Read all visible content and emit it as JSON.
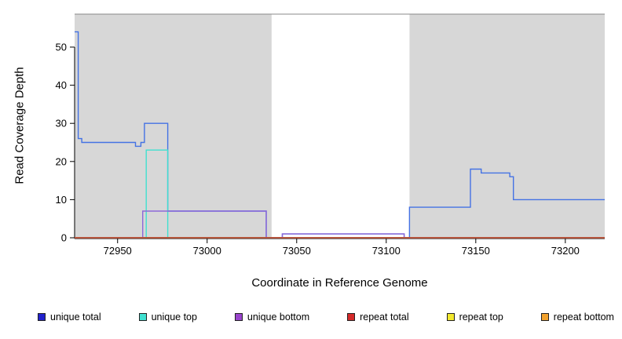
{
  "chart_data": {
    "type": "line",
    "title": "",
    "xlabel": "Coordinate in Reference Genome",
    "ylabel": "Read Coverage Depth",
    "xlim": [
      72926,
      73222
    ],
    "ylim": [
      0,
      58
    ],
    "xticks": [
      72950,
      73000,
      73050,
      73100,
      73150,
      73200
    ],
    "yticks": [
      0,
      10,
      20,
      30,
      40,
      50
    ],
    "grid": false,
    "background_regions": [
      {
        "x0": 72926,
        "x1": 73036,
        "color": "#d7d7d7"
      },
      {
        "x0": 73113,
        "x1": 73222,
        "color": "#d7d7d7"
      }
    ],
    "draw_order": [
      0,
      1,
      2,
      4,
      5,
      3
    ],
    "series": [
      {
        "name": "unique total",
        "color": "#4472e4",
        "points": [
          [
            72926,
            54
          ],
          [
            72928,
            54
          ],
          [
            72928,
            26
          ],
          [
            72930,
            26
          ],
          [
            72930,
            25
          ],
          [
            72960,
            25
          ],
          [
            72960,
            24
          ],
          [
            72963,
            24
          ],
          [
            72963,
            25
          ],
          [
            72965,
            25
          ],
          [
            72965,
            30
          ],
          [
            72978,
            30
          ],
          [
            72978,
            7
          ],
          [
            73033,
            7
          ],
          [
            73033,
            0
          ],
          [
            73042,
            0
          ],
          [
            73042,
            1
          ],
          [
            73110,
            1
          ],
          [
            73110,
            0
          ],
          [
            73113,
            0
          ],
          [
            73113,
            8
          ],
          [
            73147,
            8
          ],
          [
            73147,
            18
          ],
          [
            73153,
            18
          ],
          [
            73153,
            17
          ],
          [
            73169,
            17
          ],
          [
            73169,
            16
          ],
          [
            73171,
            16
          ],
          [
            73171,
            10
          ],
          [
            73222,
            10
          ]
        ]
      },
      {
        "name": "unique top",
        "color": "#40e0d0",
        "points": [
          [
            72926,
            0
          ],
          [
            72966,
            0
          ],
          [
            72966,
            23
          ],
          [
            72978,
            23
          ],
          [
            72978,
            0
          ],
          [
            73222,
            0
          ]
        ]
      },
      {
        "name": "unique bottom",
        "color": "#8d68d8",
        "points": [
          [
            72926,
            0
          ],
          [
            72964,
            0
          ],
          [
            72964,
            7
          ],
          [
            73033,
            7
          ],
          [
            73033,
            0
          ],
          [
            73042,
            0
          ],
          [
            73042,
            1
          ],
          [
            73110,
            1
          ],
          [
            73110,
            0
          ],
          [
            73222,
            0
          ]
        ]
      },
      {
        "name": "repeat total",
        "color": "#aa3434",
        "points": [
          [
            72926,
            0
          ],
          [
            73222,
            0
          ]
        ]
      },
      {
        "name": "repeat top",
        "color": "#f2e82e",
        "points": [
          [
            72926,
            0
          ],
          [
            73222,
            0
          ]
        ]
      },
      {
        "name": "repeat bottom",
        "color": "#f2a22e",
        "points": [
          [
            72926,
            0
          ],
          [
            73222,
            0
          ]
        ]
      }
    ]
  },
  "legend": {
    "items": [
      {
        "label": "unique total",
        "color": "#2222cc"
      },
      {
        "label": "unique top",
        "color": "#40e0d0"
      },
      {
        "label": "unique bottom",
        "color": "#9944cc"
      },
      {
        "label": "repeat total",
        "color": "#d42a2a"
      },
      {
        "label": "repeat top",
        "color": "#f2e82e"
      },
      {
        "label": "repeat bottom",
        "color": "#f2a22e"
      }
    ]
  }
}
